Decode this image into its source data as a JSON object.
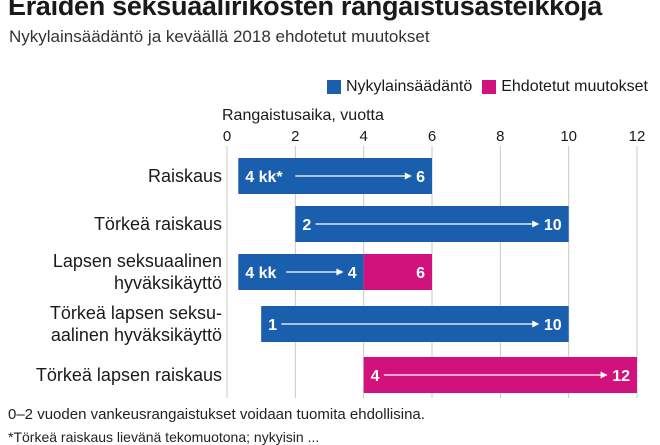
{
  "title": "Eräiden seksuaalirikosten rangaistusasteikkoja",
  "subtitle": "Nykylainsäädäntö ja keväällä 2018 ehdotetut muutokset",
  "legend": [
    {
      "label": "Nykylainsäädäntö",
      "color": "#1a5fae"
    },
    {
      "label": "Ehdotetut muutokset",
      "color": "#d2127c"
    }
  ],
  "notes": [
    "0–2 vuoden vankeusrangaistukset voidaan tuomita ehdollisina.",
    "*Törkeä raiskaus lievänä tekomuotona; nykyisin ..."
  ],
  "chart_data": {
    "type": "bar",
    "orientation": "horizontal",
    "stacked": "range",
    "xlabel": "Rangaistusaika, vuotta",
    "xlim": [
      0,
      12
    ],
    "ticks": [
      0,
      2,
      4,
      6,
      8,
      10,
      12
    ],
    "grid": true,
    "legend_position": "top-right",
    "categories": [
      [
        "Raiskaus"
      ],
      [
        "Törkeä raiskaus"
      ],
      [
        "Lapsen seksuaalinen",
        "hyväksikäyttö"
      ],
      [
        "Törkeä lapsen seksu-",
        "aalinen hyväksikäyttö"
      ],
      [
        "Törkeä lapsen raiskaus"
      ]
    ],
    "bars": [
      {
        "current": [
          0.33,
          6
        ],
        "proposed": null,
        "start_label": "4 kk*",
        "end_label": "6"
      },
      {
        "current": [
          2,
          10
        ],
        "proposed": null,
        "start_label": "2",
        "end_label": "10"
      },
      {
        "current": [
          0.33,
          4
        ],
        "proposed": [
          4,
          6
        ],
        "start_label": "4 kk",
        "mid_label": "4",
        "end_label": "6"
      },
      {
        "current": [
          1,
          10
        ],
        "proposed": null,
        "start_label": "1",
        "end_label": "10"
      },
      {
        "current": null,
        "proposed": [
          4,
          12
        ],
        "start_label": "4",
        "end_label": "12"
      }
    ],
    "colors": {
      "current": "#1a5fae",
      "proposed": "#d2127c"
    }
  }
}
